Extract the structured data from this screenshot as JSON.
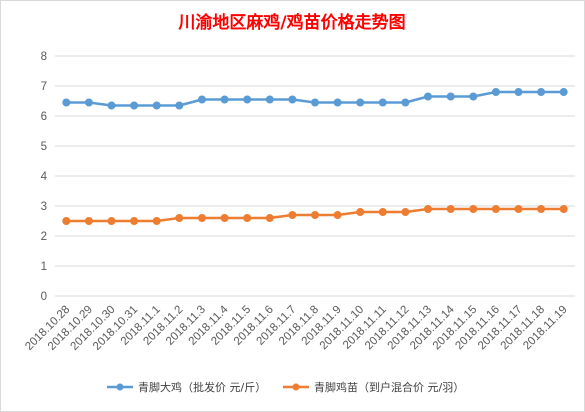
{
  "chart_data": {
    "type": "line",
    "title": "川渝地区麻鸡/鸡苗价格走势图",
    "xlabel": "",
    "ylabel": "",
    "ylim": [
      0,
      8
    ],
    "yticks": [
      "0",
      "1",
      "2",
      "3",
      "4",
      "5",
      "6",
      "7",
      "8"
    ],
    "grid": "horizontal",
    "legend_position": "bottom",
    "categories": [
      "2018.10.28",
      "2018.10.29",
      "2018.10.30",
      "2018.10.31",
      "2018.11.1",
      "2018.11.2",
      "2018.11.3",
      "2018.11.4",
      "2018.11.5",
      "2018.11.6",
      "2018.11.7",
      "2018.11.8",
      "2018.11.9",
      "2018.11.10",
      "2018.11.11",
      "2018.11.12",
      "2018.11.13",
      "2018.11.14",
      "2018.11.15",
      "2018.11.16",
      "2018.11.17",
      "2018.11.18",
      "2018.11.19"
    ],
    "series": [
      {
        "name": "青脚大鸡（批发价 元/斤）",
        "color": "#5b9bd5",
        "values": [
          6.45,
          6.45,
          6.35,
          6.35,
          6.35,
          6.35,
          6.55,
          6.55,
          6.55,
          6.55,
          6.55,
          6.45,
          6.45,
          6.45,
          6.45,
          6.45,
          6.65,
          6.65,
          6.65,
          6.8,
          6.8,
          6.8,
          6.8
        ]
      },
      {
        "name": "青脚鸡苗（到户混合价 元/羽）",
        "color": "#ed7d31",
        "values": [
          2.5,
          2.5,
          2.5,
          2.5,
          2.5,
          2.6,
          2.6,
          2.6,
          2.6,
          2.6,
          2.7,
          2.7,
          2.7,
          2.8,
          2.8,
          2.8,
          2.9,
          2.9,
          2.9,
          2.9,
          2.9,
          2.9,
          2.9
        ]
      }
    ]
  }
}
